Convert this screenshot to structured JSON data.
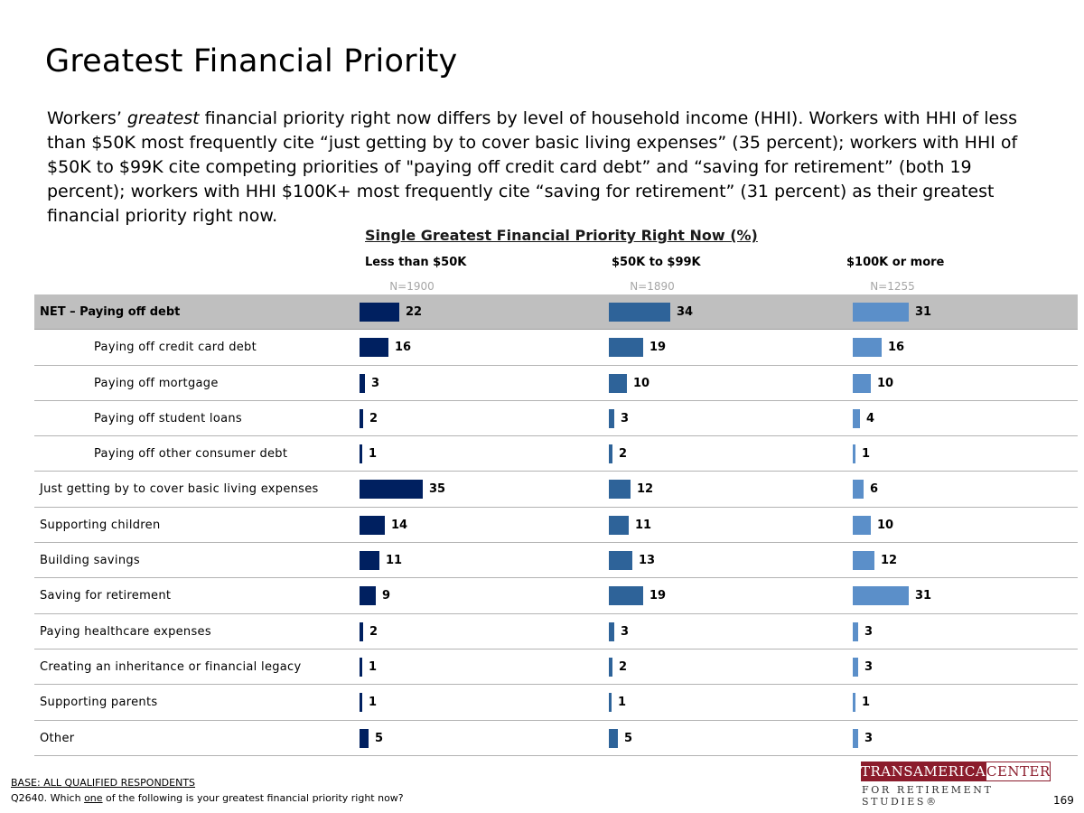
{
  "title": "Greatest Financial Priority",
  "description": {
    "part1": "Workers’ ",
    "emphasis": "greatest",
    "part2": " financial priority right now differs by level of household income (HHI). Workers with HHI of less than $50K most frequently cite “just getting by to cover basic living expenses” (35 percent); workers with HHI of $50K to $99K cite competing priorities of \"paying off credit card debt” and “saving for retirement” (both 19 percent); workers with HHI $100K+ most frequently cite “saving for retirement” (31 percent) as their greatest financial priority right now."
  },
  "chart_data": {
    "type": "bar",
    "orientation": "horizontal",
    "title": "Single Greatest Financial Priority Right Now (%)",
    "categories": [
      "NET – Paying off debt",
      "Paying off credit card debt",
      "Paying off mortgage",
      "Paying off student loans",
      "Paying off other consumer debt",
      "Just getting by to cover basic living expenses",
      "Supporting children",
      "Building savings",
      "Saving for retirement",
      "Paying healthcare expenses",
      "Creating an inheritance or financial legacy",
      "Supporting parents",
      "Other"
    ],
    "net_row_index": 0,
    "sub_row_indices": [
      1,
      2,
      3,
      4
    ],
    "series": [
      {
        "name": "Less than $50K",
        "n": "N=1900",
        "color": "#002060",
        "values": [
          22,
          16,
          3,
          2,
          1,
          35,
          14,
          11,
          9,
          2,
          1,
          1,
          5
        ]
      },
      {
        "name": "$50K to $99K",
        "n": "N=1890",
        "color": "#2e6399",
        "values": [
          34,
          19,
          10,
          3,
          2,
          12,
          11,
          13,
          19,
          3,
          2,
          1,
          5
        ]
      },
      {
        "name": "$100K or more",
        "n": "N=1255",
        "color": "#5b8fc9",
        "values": [
          31,
          16,
          10,
          4,
          1,
          6,
          10,
          12,
          31,
          3,
          3,
          1,
          3
        ]
      }
    ]
  },
  "footer": {
    "base": "BASE: ALL QUALIFIED RESPONDENTS",
    "question_pre": "Q2640. Which ",
    "question_emph": "one",
    "question_post": " of the following is your greatest financial priority right now?",
    "page_number": "169"
  },
  "logo": {
    "word1": "TRANSAMERICA",
    "word2": "CENTER",
    "tagline": "FOR RETIREMENT STUDIES®"
  }
}
